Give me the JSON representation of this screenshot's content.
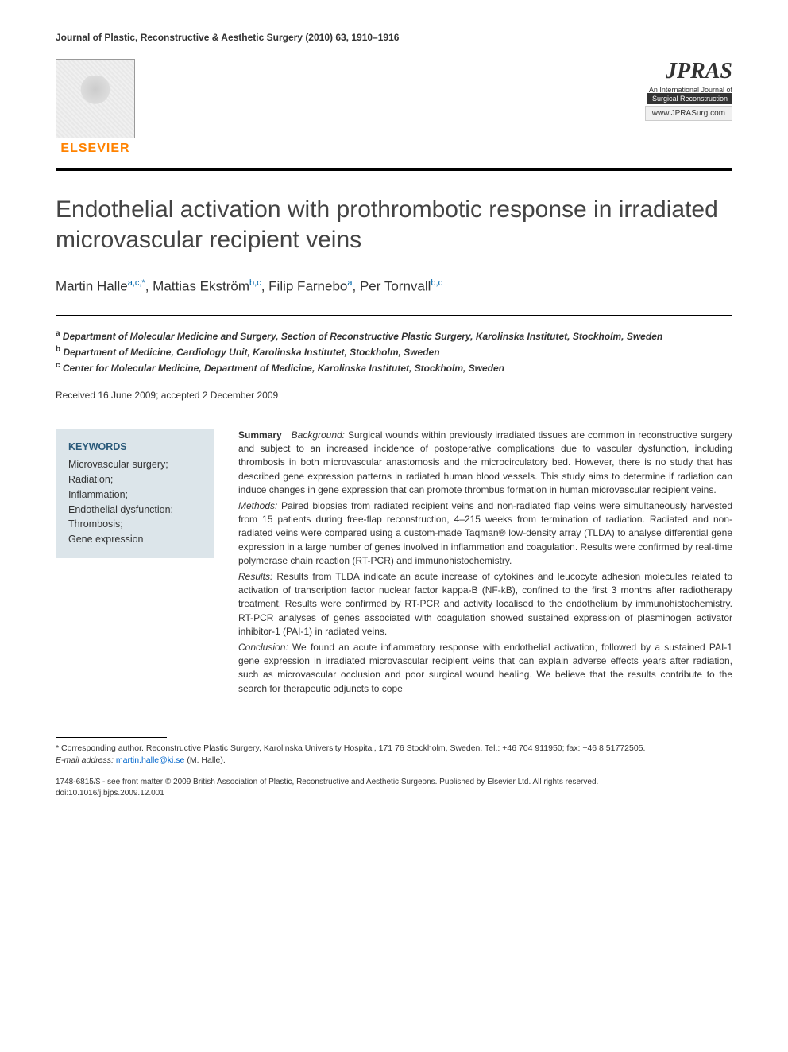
{
  "header": {
    "journal_citation": "Journal of Plastic, Reconstructive & Aesthetic Surgery (2010) 63, 1910–1916"
  },
  "logos": {
    "elsevier": "ELSEVIER",
    "jpras_title": "JPRAS",
    "jpras_sub1": "An International Journal of",
    "jpras_sub2": "Surgical Reconstruction",
    "jpras_url": "www.JPRASurg.com"
  },
  "article": {
    "title": "Endothelial activation with prothrombotic response in irradiated microvascular recipient veins"
  },
  "authors": {
    "line": "Martin Halle",
    "a1_sup": "a,c,*",
    "a2": ", Mattias Ekström",
    "a2_sup": "b,c",
    "a3": ", Filip Farnebo",
    "a3_sup": "a",
    "a4": ", Per Tornvall",
    "a4_sup": "b,c"
  },
  "affiliations": {
    "a": "Department of Molecular Medicine and Surgery, Section of Reconstructive Plastic Surgery, Karolinska Institutet, Stockholm, Sweden",
    "b": "Department of Medicine, Cardiology Unit, Karolinska Institutet, Stockholm, Sweden",
    "c": "Center for Molecular Medicine, Department of Medicine, Karolinska Institutet, Stockholm, Sweden"
  },
  "dates": {
    "text": "Received 16 June 2009; accepted 2 December 2009"
  },
  "keywords": {
    "heading": "KEYWORDS",
    "items": "Microvascular surgery;\nRadiation;\nInflammation;\nEndothelial dysfunction;\nThrombosis;\nGene expression"
  },
  "abstract": {
    "summary_label": "Summary",
    "background_label": "Background:",
    "background": " Surgical wounds within previously irradiated tissues are common in reconstructive surgery and subject to an increased incidence of postoperative complications due to vascular dysfunction, including thrombosis in both microvascular anastomosis and the microcirculatory bed. However, there is no study that has described gene expression patterns in radiated human blood vessels. This study aims to determine if radiation can induce changes in gene expression that can promote thrombus formation in human microvascular recipient veins.",
    "methods_label": "Methods:",
    "methods": " Paired biopsies from radiated recipient veins and non-radiated flap veins were simultaneously harvested from 15 patients during free-flap reconstruction, 4–215 weeks from termination of radiation. Radiated and non-radiated veins were compared using a custom-made Taqman® low-density array (TLDA) to analyse differential gene expression in a large number of genes involved in inflammation and coagulation. Results were confirmed by real-time polymerase chain reaction (RT-PCR) and immunohistochemistry.",
    "results_label": "Results:",
    "results": " Results from TLDA indicate an acute increase of cytokines and leucocyte adhesion molecules related to activation of transcription factor nuclear factor kappa-B (NF-kB), confined to the first 3 months after radiotherapy treatment. Results were confirmed by RT-PCR and activity localised to the endothelium by immunohistochemistry. RT-PCR analyses of genes associated with coagulation showed sustained expression of plasminogen activator inhibitor-1 (PAI-1) in radiated veins.",
    "conclusion_label": "Conclusion:",
    "conclusion": " We found an acute inflammatory response with endothelial activation, followed by a sustained PAI-1 gene expression in irradiated microvascular recipient veins that can explain adverse effects years after radiation, such as microvascular occlusion and poor surgical wound healing. We believe that the results contribute to the search for therapeutic adjuncts to cope"
  },
  "footnotes": {
    "corresponding": "* Corresponding author. Reconstructive Plastic Surgery, Karolinska University Hospital, 171 76 Stockholm, Sweden. Tel.: +46 704 911950; fax: +46 8 51772505.",
    "email_label": "E-mail address:",
    "email": "martin.halle@ki.se",
    "email_suffix": " (M. Halle)."
  },
  "copyright": {
    "line1": "1748-6815/$ - see front matter © 2009 British Association of Plastic, Reconstructive and Aesthetic Surgeons. Published by Elsevier Ltd. All rights reserved.",
    "doi": "doi:10.1016/j.bjps.2009.12.001"
  }
}
